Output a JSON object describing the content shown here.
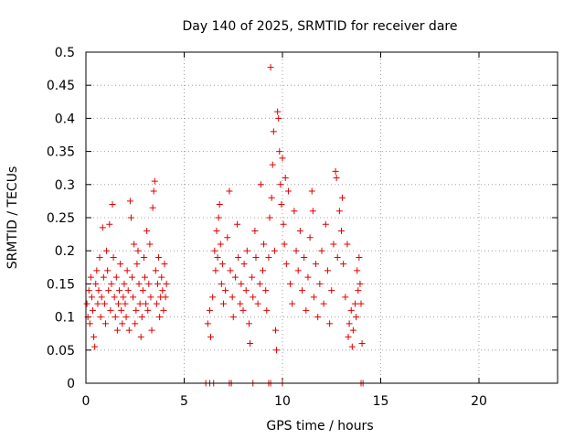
{
  "chart_data": {
    "type": "scatter",
    "title": "Day 140 of 2025, SRMTID for receiver dare",
    "xlabel": "GPS time / hours",
    "ylabel": "SRMTID / TECUs",
    "xlim": [
      0,
      24
    ],
    "ylim": [
      0,
      0.5
    ],
    "x_ticks": [
      "0",
      "5",
      "10",
      "15",
      "20"
    ],
    "y_ticks": [
      "0",
      "0.05",
      "0.1",
      "0.15",
      "0.2",
      "0.25",
      "0.3",
      "0.35",
      "0.4",
      "0.45",
      "0.5"
    ],
    "grid": true,
    "marker": "+",
    "color": "#e00000",
    "series": [
      {
        "name": "SRMTID",
        "points": [
          [
            0.05,
            0.12
          ],
          [
            0.1,
            0.1
          ],
          [
            0.15,
            0.14
          ],
          [
            0.2,
            0.09
          ],
          [
            0.25,
            0.16
          ],
          [
            0.3,
            0.13
          ],
          [
            0.35,
            0.11
          ],
          [
            0.4,
            0.07
          ],
          [
            0.45,
            0.055
          ],
          [
            0.5,
            0.15
          ],
          [
            0.55,
            0.17
          ],
          [
            0.6,
            0.12
          ],
          [
            0.65,
            0.14
          ],
          [
            0.7,
            0.19
          ],
          [
            0.75,
            0.1
          ],
          [
            0.8,
            0.13
          ],
          [
            0.85,
            0.235
          ],
          [
            0.9,
            0.16
          ],
          [
            0.95,
            0.12
          ],
          [
            1.0,
            0.09
          ],
          [
            1.05,
            0.2
          ],
          [
            1.1,
            0.17
          ],
          [
            1.15,
            0.14
          ],
          [
            1.2,
            0.24
          ],
          [
            1.25,
            0.11
          ],
          [
            1.3,
            0.15
          ],
          [
            1.35,
            0.27
          ],
          [
            1.4,
            0.19
          ],
          [
            1.45,
            0.13
          ],
          [
            1.5,
            0.1
          ],
          [
            1.55,
            0.16
          ],
          [
            1.6,
            0.08
          ],
          [
            1.65,
            0.12
          ],
          [
            1.7,
            0.14
          ],
          [
            1.75,
            0.18
          ],
          [
            1.8,
            0.11
          ],
          [
            1.85,
            0.09
          ],
          [
            1.9,
            0.13
          ],
          [
            1.95,
            0.15
          ],
          [
            2.0,
            0.12
          ],
          [
            2.05,
            0.1
          ],
          [
            2.1,
            0.17
          ],
          [
            2.15,
            0.14
          ],
          [
            2.2,
            0.08
          ],
          [
            2.25,
            0.275
          ],
          [
            2.3,
            0.25
          ],
          [
            2.35,
            0.16
          ],
          [
            2.4,
            0.13
          ],
          [
            2.45,
            0.21
          ],
          [
            2.5,
            0.09
          ],
          [
            2.55,
            0.11
          ],
          [
            2.6,
            0.18
          ],
          [
            2.65,
            0.2
          ],
          [
            2.7,
            0.15
          ],
          [
            2.75,
            0.12
          ],
          [
            2.8,
            0.07
          ],
          [
            2.85,
            0.1
          ],
          [
            2.9,
            0.14
          ],
          [
            2.95,
            0.19
          ],
          [
            3.0,
            0.16
          ],
          [
            3.05,
            0.12
          ],
          [
            3.1,
            0.23
          ],
          [
            3.15,
            0.11
          ],
          [
            3.2,
            0.15
          ],
          [
            3.25,
            0.21
          ],
          [
            3.3,
            0.13
          ],
          [
            3.35,
            0.08
          ],
          [
            3.4,
            0.265
          ],
          [
            3.45,
            0.29
          ],
          [
            3.5,
            0.305
          ],
          [
            3.55,
            0.17
          ],
          [
            3.6,
            0.12
          ],
          [
            3.65,
            0.15
          ],
          [
            3.7,
            0.19
          ],
          [
            3.75,
            0.1
          ],
          [
            3.8,
            0.13
          ],
          [
            3.85,
            0.16
          ],
          [
            3.9,
            0.14
          ],
          [
            3.95,
            0.11
          ],
          [
            4.0,
            0.18
          ],
          [
            4.05,
            0.13
          ],
          [
            4.1,
            0.15
          ],
          [
            6.2,
            0.09
          ],
          [
            6.3,
            0.11
          ],
          [
            6.35,
            0.07
          ],
          [
            6.45,
            0.13
          ],
          [
            6.55,
            0.2
          ],
          [
            6.6,
            0.17
          ],
          [
            6.65,
            0.23
          ],
          [
            6.7,
            0.19
          ],
          [
            6.75,
            0.25
          ],
          [
            6.8,
            0.27
          ],
          [
            6.85,
            0.21
          ],
          [
            6.9,
            0.15
          ],
          [
            6.95,
            0.18
          ],
          [
            7.0,
            0.12
          ],
          [
            7.1,
            0.14
          ],
          [
            7.2,
            0.22
          ],
          [
            7.3,
            0.29
          ],
          [
            7.35,
            0.17
          ],
          [
            7.45,
            0.13
          ],
          [
            7.5,
            0.1
          ],
          [
            7.6,
            0.16
          ],
          [
            7.7,
            0.24
          ],
          [
            7.75,
            0.19
          ],
          [
            7.85,
            0.12
          ],
          [
            7.9,
            0.15
          ],
          [
            8.0,
            0.11
          ],
          [
            8.05,
            0.18
          ],
          [
            8.15,
            0.14
          ],
          [
            8.2,
            0.2
          ],
          [
            8.3,
            0.09
          ],
          [
            8.35,
            0.06
          ],
          [
            8.45,
            0.16
          ],
          [
            8.5,
            0.13
          ],
          [
            8.6,
            0.23
          ],
          [
            8.65,
            0.19
          ],
          [
            8.75,
            0.12
          ],
          [
            8.85,
            0.15
          ],
          [
            8.9,
            0.3
          ],
          [
            9.0,
            0.17
          ],
          [
            9.05,
            0.21
          ],
          [
            9.15,
            0.14
          ],
          [
            9.2,
            0.11
          ],
          [
            9.3,
            0.19
          ],
          [
            9.35,
            0.25
          ],
          [
            9.4,
            0.477
          ],
          [
            9.45,
            0.28
          ],
          [
            9.5,
            0.33
          ],
          [
            9.55,
            0.38
          ],
          [
            9.6,
            0.2
          ],
          [
            9.65,
            0.08
          ],
          [
            9.7,
            0.05
          ],
          [
            9.75,
            0.41
          ],
          [
            9.8,
            0.4
          ],
          [
            9.85,
            0.35
          ],
          [
            9.9,
            0.3
          ],
          [
            9.95,
            0.27
          ],
          [
            10.0,
            0.34
          ],
          [
            10.05,
            0.24
          ],
          [
            10.1,
            0.21
          ],
          [
            10.15,
            0.31
          ],
          [
            10.2,
            0.18
          ],
          [
            10.3,
            0.29
          ],
          [
            10.4,
            0.15
          ],
          [
            10.5,
            0.12
          ],
          [
            10.6,
            0.26
          ],
          [
            10.7,
            0.2
          ],
          [
            10.8,
            0.17
          ],
          [
            10.9,
            0.23
          ],
          [
            11.0,
            0.14
          ],
          [
            11.1,
            0.19
          ],
          [
            11.2,
            0.11
          ],
          [
            11.3,
            0.16
          ],
          [
            11.4,
            0.22
          ],
          [
            11.5,
            0.29
          ],
          [
            11.55,
            0.26
          ],
          [
            11.6,
            0.13
          ],
          [
            11.7,
            0.18
          ],
          [
            11.8,
            0.1
          ],
          [
            11.9,
            0.15
          ],
          [
            12.0,
            0.2
          ],
          [
            12.1,
            0.12
          ],
          [
            12.2,
            0.24
          ],
          [
            12.3,
            0.17
          ],
          [
            12.4,
            0.09
          ],
          [
            12.5,
            0.14
          ],
          [
            12.6,
            0.21
          ],
          [
            12.7,
            0.32
          ],
          [
            12.75,
            0.31
          ],
          [
            12.8,
            0.19
          ],
          [
            12.9,
            0.26
          ],
          [
            13.0,
            0.23
          ],
          [
            13.05,
            0.28
          ],
          [
            13.1,
            0.18
          ],
          [
            13.2,
            0.13
          ],
          [
            13.3,
            0.21
          ],
          [
            13.35,
            0.07
          ],
          [
            13.4,
            0.09
          ],
          [
            13.5,
            0.11
          ],
          [
            13.55,
            0.055
          ],
          [
            13.6,
            0.08
          ],
          [
            13.7,
            0.12
          ],
          [
            13.75,
            0.1
          ],
          [
            13.8,
            0.17
          ],
          [
            13.85,
            0.14
          ],
          [
            13.9,
            0.19
          ],
          [
            13.95,
            0.15
          ],
          [
            14.0,
            0.12
          ],
          [
            14.05,
            0.06
          ]
        ]
      }
    ],
    "zero_marks_x": [
      6.1,
      6.3,
      6.5,
      7.3,
      7.4,
      8.5,
      9.3,
      9.4,
      10.0,
      14.0,
      14.1
    ]
  }
}
